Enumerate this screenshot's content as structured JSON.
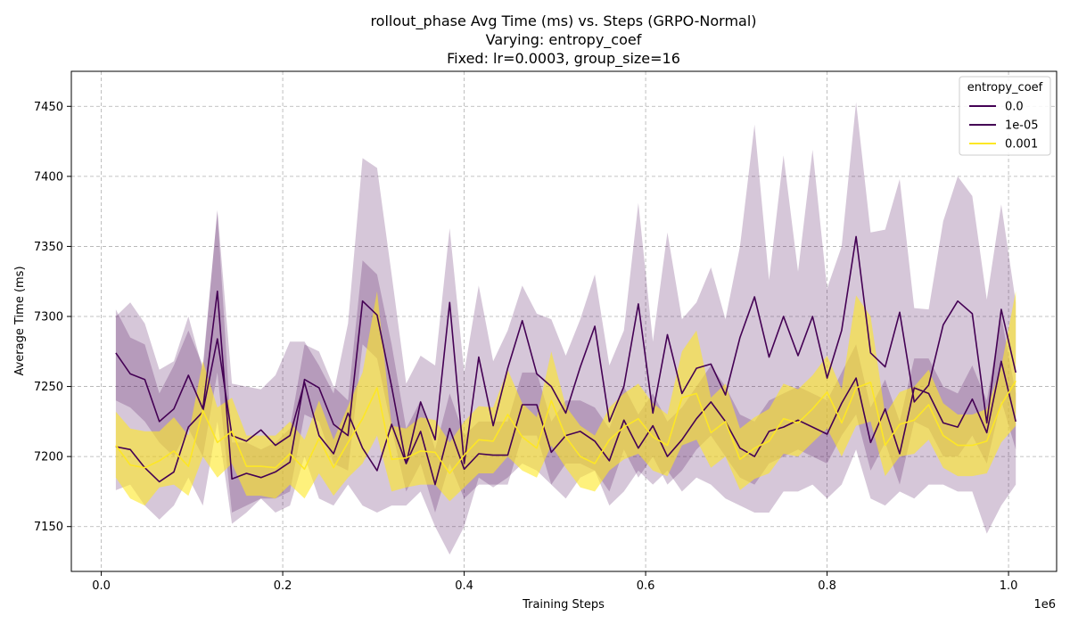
{
  "chart_data": {
    "type": "line",
    "title_lines": [
      "rollout_phase Avg Time (ms) vs. Steps (GRPO-Normal)",
      "Varying: entropy_coef",
      "Fixed: lr=0.0003, group_size=16"
    ],
    "xlabel": "Training Steps",
    "ylabel": "Average Time (ms)",
    "x_offset_label": "1e6",
    "xlim": [
      -0.033,
      1.053
    ],
    "ylim": [
      7118,
      7475
    ],
    "x_ticks": [
      0.0,
      0.2,
      0.4,
      0.6,
      0.8,
      1.0
    ],
    "x_tick_labels": [
      "0.0",
      "0.2",
      "0.4",
      "0.6",
      "0.8",
      "1.0"
    ],
    "y_ticks": [
      7150,
      7200,
      7250,
      7300,
      7350,
      7400,
      7450
    ],
    "y_tick_labels": [
      "7150",
      "7200",
      "7250",
      "7300",
      "7350",
      "7400",
      "7450"
    ],
    "grid": true,
    "legend": {
      "title": "entropy_coef",
      "placement": "top-right"
    },
    "x": [
      0.016,
      0.032,
      0.048,
      0.064,
      0.08,
      0.096,
      0.112,
      0.128,
      0.144,
      0.16,
      0.176,
      0.192,
      0.208,
      0.224,
      0.24,
      0.256,
      0.272,
      0.288,
      0.304,
      0.32,
      0.336,
      0.352,
      0.368,
      0.384,
      0.4,
      0.416,
      0.432,
      0.448,
      0.464,
      0.48,
      0.496,
      0.512,
      0.528,
      0.544,
      0.56,
      0.576,
      0.592,
      0.608,
      0.624,
      0.64,
      0.656,
      0.672,
      0.688,
      0.704,
      0.72,
      0.736,
      0.752,
      0.768,
      0.784,
      0.8,
      0.816,
      0.832,
      0.848,
      0.864,
      0.88,
      0.896,
      0.912,
      0.928,
      0.944,
      0.96,
      0.976,
      0.992,
      1.008
    ],
    "series": [
      {
        "name": "0.0",
        "color": "#440154",
        "band_color": "#e8dced",
        "values": [
          7274,
          7259,
          7255,
          7225,
          7234,
          7258,
          7234,
          7318,
          7184,
          7188,
          7185,
          7189,
          7196,
          7255,
          7249,
          7223,
          7215,
          7311,
          7301,
          7250,
          7195,
          7218,
          7180,
          7220,
          7191,
          7202,
          7201,
          7201,
          7237,
          7237,
          7203,
          7215,
          7218,
          7211,
          7197,
          7226,
          7206,
          7222,
          7200,
          7212,
          7227,
          7239,
          7225,
          7206,
          7200,
          7218,
          7221,
          7226,
          7221,
          7216,
          7238,
          7256,
          7210,
          7234,
          7202,
          7249,
          7245,
          7224,
          7221,
          7241,
          7217,
          7268,
          7225
        ],
        "lower": [
          7240,
          7235,
          7225,
          7210,
          7200,
          7220,
          7200,
          7260,
          7160,
          7165,
          7170,
          7170,
          7175,
          7230,
          7225,
          7195,
          7190,
          7280,
          7270,
          7220,
          7175,
          7195,
          7160,
          7195,
          7170,
          7180,
          7180,
          7180,
          7215,
          7215,
          7180,
          7195,
          7195,
          7190,
          7175,
          7205,
          7185,
          7200,
          7180,
          7190,
          7205,
          7215,
          7200,
          7185,
          7180,
          7195,
          7200,
          7205,
          7200,
          7195,
          7215,
          7230,
          7190,
          7210,
          7180,
          7225,
          7220,
          7200,
          7200,
          7215,
          7195,
          7240,
          7205
        ],
        "upper": [
          7305,
          7285,
          7280,
          7245,
          7265,
          7290,
          7265,
          7375,
          7210,
          7210,
          7205,
          7210,
          7220,
          7280,
          7275,
          7250,
          7240,
          7340,
          7330,
          7280,
          7220,
          7240,
          7205,
          7245,
          7215,
          7225,
          7225,
          7225,
          7260,
          7260,
          7225,
          7240,
          7240,
          7235,
          7220,
          7250,
          7230,
          7245,
          7225,
          7235,
          7250,
          7265,
          7250,
          7230,
          7225,
          7240,
          7245,
          7250,
          7245,
          7240,
          7260,
          7280,
          7235,
          7255,
          7225,
          7270,
          7270,
          7250,
          7245,
          7265,
          7240,
          7300,
          7245
        ]
      },
      {
        "name": "1e-05",
        "color": "#440154",
        "band_color": "#d7c6dd",
        "values": [
          7207,
          7205,
          7192,
          7182,
          7189,
          7221,
          7232,
          7284,
          7215,
          7211,
          7219,
          7208,
          7215,
          7253,
          7215,
          7202,
          7231,
          7206,
          7190,
          7223,
          7195,
          7239,
          7212,
          7310,
          7195,
          7271,
          7222,
          7263,
          7297,
          7259,
          7250,
          7231,
          7264,
          7293,
          7225,
          7250,
          7309,
          7231,
          7287,
          7245,
          7263,
          7266,
          7244,
          7285,
          7314,
          7271,
          7300,
          7272,
          7300,
          7256,
          7290,
          7357,
          7274,
          7264,
          7303,
          7239,
          7251,
          7294,
          7311,
          7302,
          7224,
          7305,
          7260
        ],
        "lower": [
          7176,
          7180,
          7165,
          7155,
          7165,
          7185,
          7165,
          7225,
          7152,
          7160,
          7170,
          7160,
          7165,
          7200,
          7170,
          7165,
          7180,
          7165,
          7160,
          7165,
          7165,
          7175,
          7150,
          7130,
          7150,
          7185,
          7178,
          7185,
          7195,
          7190,
          7180,
          7170,
          7185,
          7190,
          7165,
          7175,
          7190,
          7180,
          7190,
          7175,
          7185,
          7180,
          7170,
          7165,
          7160,
          7160,
          7175,
          7175,
          7180,
          7170,
          7180,
          7205,
          7170,
          7165,
          7175,
          7170,
          7180,
          7180,
          7175,
          7175,
          7145,
          7165,
          7180
        ],
        "upper": [
          7300,
          7310,
          7295,
          7262,
          7268,
          7300,
          7262,
          7376,
          7252,
          7250,
          7248,
          7258,
          7282,
          7282,
          7265,
          7245,
          7295,
          7413,
          7406,
          7330,
          7252,
          7272,
          7265,
          7363,
          7260,
          7322,
          7268,
          7290,
          7322,
          7302,
          7298,
          7272,
          7298,
          7330,
          7265,
          7290,
          7381,
          7282,
          7360,
          7298,
          7310,
          7335,
          7298,
          7350,
          7437,
          7326,
          7415,
          7332,
          7419,
          7320,
          7350,
          7453,
          7360,
          7362,
          7398,
          7306,
          7305,
          7368,
          7400,
          7386,
          7312,
          7380,
          7310
        ]
      },
      {
        "name": "0.001",
        "color": "#fde725",
        "band_color": "#fdf0a6",
        "values": [
          7208,
          7194,
          7192,
          7197,
          7204,
          7193,
          7233,
          7210,
          7218,
          7193,
          7193,
          7192,
          7202,
          7191,
          7213,
          7192,
          7210,
          7227,
          7249,
          7198,
          7199,
          7204,
          7203,
          7188,
          7201,
          7212,
          7211,
          7230,
          7214,
          7206,
          7240,
          7214,
          7200,
          7195,
          7212,
          7221,
          7227,
          7214,
          7208,
          7242,
          7245,
          7217,
          7225,
          7198,
          7206,
          7211,
          7227,
          7224,
          7234,
          7246,
          7224,
          7249,
          7253,
          7208,
          7223,
          7226,
          7237,
          7215,
          7208,
          7208,
          7211,
          7237,
          7254
        ],
        "lower": [
          7185,
          7170,
          7165,
          7178,
          7180,
          7172,
          7200,
          7185,
          7195,
          7172,
          7172,
          7170,
          7180,
          7170,
          7188,
          7172,
          7185,
          7195,
          7215,
          7175,
          7178,
          7180,
          7180,
          7168,
          7178,
          7188,
          7188,
          7200,
          7190,
          7185,
          7208,
          7192,
          7178,
          7175,
          7190,
          7198,
          7202,
          7190,
          7186,
          7208,
          7212,
          7192,
          7200,
          7176,
          7184,
          7188,
          7202,
          7200,
          7210,
          7220,
          7200,
          7222,
          7225,
          7186,
          7200,
          7202,
          7212,
          7192,
          7186,
          7186,
          7188,
          7210,
          7222
        ],
        "upper": [
          7232,
          7220,
          7218,
          7218,
          7228,
          7215,
          7268,
          7235,
          7242,
          7215,
          7215,
          7215,
          7225,
          7212,
          7240,
          7212,
          7236,
          7260,
          7318,
          7222,
          7220,
          7228,
          7226,
          7210,
          7225,
          7236,
          7235,
          7262,
          7238,
          7228,
          7275,
          7236,
          7222,
          7215,
          7235,
          7245,
          7252,
          7238,
          7230,
          7275,
          7290,
          7242,
          7252,
          7220,
          7228,
          7234,
          7252,
          7248,
          7258,
          7272,
          7248,
          7315,
          7300,
          7230,
          7246,
          7250,
          7262,
          7238,
          7230,
          7230,
          7234,
          7264,
          7318
        ]
      }
    ]
  }
}
